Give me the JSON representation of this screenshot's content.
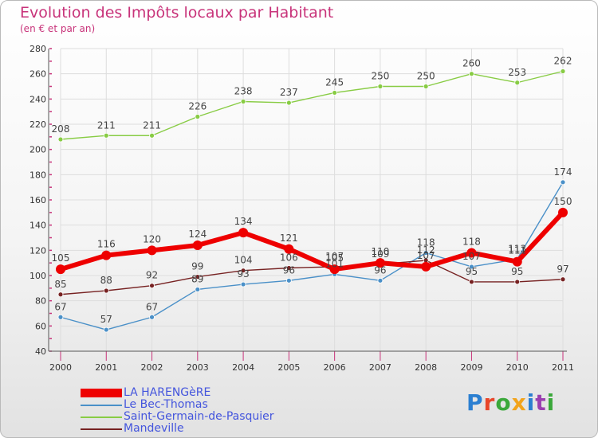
{
  "title": "Evolution des Impôts locaux par Habitant",
  "subtitle": "(en € et par an)",
  "logo": {
    "text": "Proxiti",
    "colors": [
      "#2b7fd1",
      "#e8462a",
      "#3aa83a",
      "#f2a31b",
      "#2b7fd1",
      "#9a3fb0",
      "#3aa83a"
    ]
  },
  "legend": [
    {
      "name": "LA HARENGèRE",
      "color": "#ee0000"
    },
    {
      "name": "Le Bec-Thomas",
      "color": "#4a90c8"
    },
    {
      "name": "Saint-Germain-de-Pasquier",
      "color": "#88cc44"
    },
    {
      "name": "Mandeville",
      "color": "#772222"
    }
  ],
  "chart_data": {
    "type": "line",
    "title": "Evolution des Impôts locaux par Habitant",
    "subtitle": "(en € et par an)",
    "x": [
      "2000",
      "2001",
      "2002",
      "2003",
      "2004",
      "2005",
      "2006",
      "2007",
      "2008",
      "2009",
      "2010",
      "2011"
    ],
    "ylim": [
      40,
      280
    ],
    "yticks": [
      40,
      60,
      80,
      100,
      120,
      140,
      160,
      180,
      200,
      220,
      240,
      260,
      280
    ],
    "grid": true,
    "legend_position": "bottom-left",
    "series": [
      {
        "name": "Saint-Germain-de-Pasquier",
        "color": "#88cc44",
        "values": [
          208,
          211,
          211,
          226,
          238,
          237,
          245,
          250,
          250,
          260,
          253,
          262
        ]
      },
      {
        "name": "Le Bec-Thomas",
        "color": "#4a90c8",
        "values": [
          67,
          57,
          67,
          89,
          93,
          96,
          101,
          96,
          118,
          107,
          113,
          174
        ]
      },
      {
        "name": "Mandeville",
        "color": "#772222",
        "values": [
          85,
          88,
          92,
          99,
          104,
          106,
          107,
          109,
          112,
          95,
          95,
          97
        ]
      },
      {
        "name": "LA HARENGèRE",
        "color": "#ee0000",
        "values": [
          105,
          116,
          120,
          124,
          134,
          121,
          105,
          110,
          107,
          118,
          111,
          150
        ]
      }
    ],
    "data_labels": [
      {
        "series": "Saint-Germain-de-Pasquier",
        "labels": [
          "208",
          "211",
          "211",
          "226",
          "238",
          "237",
          "245",
          "250",
          "250",
          "260",
          "253",
          "262"
        ]
      },
      {
        "series": "Le Bec-Thomas",
        "labels": [
          "67",
          "57",
          "67",
          "89",
          "93",
          "96",
          "101",
          "96",
          "118",
          "107",
          "113",
          "174"
        ]
      },
      {
        "series": "Mandeville",
        "labels": [
          "85",
          "88",
          "92",
          "99",
          "104",
          "106",
          "107",
          "109",
          "112",
          "95",
          "95",
          "97"
        ]
      },
      {
        "series": "LA HARENGèRE",
        "labels": [
          "105",
          "116",
          "120",
          "124",
          "134",
          "121",
          "105",
          "110",
          "107",
          "118",
          "111",
          "150"
        ]
      }
    ]
  }
}
